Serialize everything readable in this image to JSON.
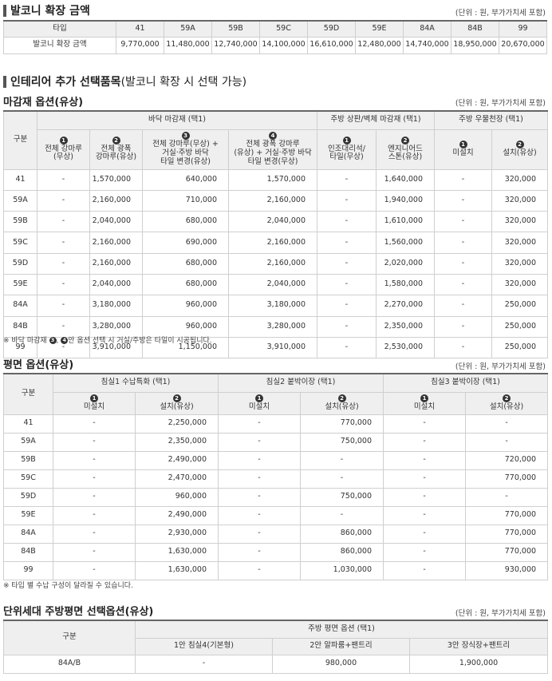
{
  "balcony": {
    "title": "발코니 확장 금액",
    "unit": "(단위 : 원, 부가가치세 포함)",
    "header_label": "타입",
    "types": [
      "41",
      "59A",
      "59B",
      "59C",
      "59D",
      "59E",
      "84A",
      "84B",
      "99"
    ],
    "row_label": "발코니 확장 금액",
    "values": [
      "9,770,000",
      "11,480,000",
      "12,740,000",
      "14,100,000",
      "16,610,000",
      "12,480,000",
      "14,740,000",
      "18,950,000",
      "20,670,000"
    ]
  },
  "interior": {
    "title": "인테리어 추가 선택품목",
    "title_suffix": "(발코니 확장 시 선택 가능)"
  },
  "finish": {
    "title": "마감재 옵션(유상)",
    "unit": "(단위 : 원, 부가가치세 포함)",
    "gubun": "구분",
    "groups": [
      "바닥 마감재 (택1)",
      "주방 상판/벽체 마감재 (택1)",
      "주방 우물천장 (택1)"
    ],
    "cols": [
      {
        "n": "1",
        "lines": [
          "전체 강마루",
          "(무상)"
        ]
      },
      {
        "n": "2",
        "lines": [
          "전체 광폭",
          "강마루(유상)"
        ]
      },
      {
        "n": "3",
        "lines": [
          "전체 강마루(무상) +",
          "거실·주방 바닥",
          "타일 변경(유상)"
        ]
      },
      {
        "n": "4",
        "lines": [
          "전체 광폭 강마루",
          "(유상) + 거실·주방 바닥",
          "타일 변경(무상)"
        ]
      },
      {
        "n": "1",
        "lines": [
          "인조대리석/",
          "타일(무상)"
        ]
      },
      {
        "n": "2",
        "lines": [
          "엔지니어드",
          "스톤(유상)"
        ]
      },
      {
        "n": "1",
        "lines": [
          "미설치"
        ]
      },
      {
        "n": "2",
        "lines": [
          "설치(유상)"
        ]
      }
    ],
    "rows": [
      {
        "type": "41",
        "v": [
          "-",
          "1,570,000",
          "640,000",
          "1,570,000",
          "-",
          "1,640,000",
          "-",
          "320,000"
        ]
      },
      {
        "type": "59A",
        "v": [
          "-",
          "2,160,000",
          "710,000",
          "2,160,000",
          "-",
          "1,940,000",
          "-",
          "320,000"
        ]
      },
      {
        "type": "59B",
        "v": [
          "-",
          "2,040,000",
          "680,000",
          "2,040,000",
          "-",
          "1,610,000",
          "-",
          "320,000"
        ]
      },
      {
        "type": "59C",
        "v": [
          "-",
          "2,160,000",
          "690,000",
          "2,160,000",
          "-",
          "1,560,000",
          "-",
          "320,000"
        ]
      },
      {
        "type": "59D",
        "v": [
          "-",
          "2,160,000",
          "680,000",
          "2,160,000",
          "-",
          "2,020,000",
          "-",
          "320,000"
        ]
      },
      {
        "type": "59E",
        "v": [
          "-",
          "2,040,000",
          "680,000",
          "2,040,000",
          "-",
          "1,580,000",
          "-",
          "320,000"
        ]
      },
      {
        "type": "84A",
        "v": [
          "-",
          "3,180,000",
          "960,000",
          "3,180,000",
          "-",
          "2,270,000",
          "-",
          "250,000"
        ]
      },
      {
        "type": "84B",
        "v": [
          "-",
          "3,280,000",
          "960,000",
          "3,280,000",
          "-",
          "2,350,000",
          "-",
          "250,000"
        ]
      },
      {
        "type": "99",
        "v": [
          "-",
          "3,910,000",
          "1,150,000",
          "3,910,000",
          "-",
          "2,530,000",
          "-",
          "250,000"
        ]
      }
    ],
    "note_prefix": "※ 바닥 마감재 ",
    "note_b1": "3",
    "note_mid": ", ",
    "note_b2": "4",
    "note_suffix": "안 옵션 선택 시 거실/주방은 타일이 시공됩니다."
  },
  "plan": {
    "title": "평면 옵션(유상)",
    "unit": "(단위 : 원, 부가가치세 포함)",
    "gubun": "구분",
    "groups": [
      "침실1 수납특화 (택1)",
      "침실2 붙박이장 (택1)",
      "침실3 붙박이장 (택1)"
    ],
    "cols": [
      {
        "n": "1",
        "label": "미설치"
      },
      {
        "n": "2",
        "label": "설치(유상)"
      },
      {
        "n": "1",
        "label": "미설치"
      },
      {
        "n": "2",
        "label": "설치(유상)"
      },
      {
        "n": "1",
        "label": "미설치"
      },
      {
        "n": "2",
        "label": "설치(유상)"
      }
    ],
    "rows": [
      {
        "type": "41",
        "v": [
          "-",
          "2,250,000",
          "-",
          "770,000",
          "-",
          "-"
        ]
      },
      {
        "type": "59A",
        "v": [
          "-",
          "2,350,000",
          "-",
          "750,000",
          "-",
          "-"
        ]
      },
      {
        "type": "59B",
        "v": [
          "-",
          "2,490,000",
          "-",
          "-",
          "-",
          "720,000"
        ]
      },
      {
        "type": "59C",
        "v": [
          "-",
          "2,470,000",
          "-",
          "-",
          "-",
          "770,000"
        ]
      },
      {
        "type": "59D",
        "v": [
          "-",
          "960,000",
          "-",
          "750,000",
          "-",
          "-"
        ]
      },
      {
        "type": "59E",
        "v": [
          "-",
          "2,490,000",
          "-",
          "-",
          "-",
          "770,000"
        ]
      },
      {
        "type": "84A",
        "v": [
          "-",
          "2,930,000",
          "-",
          "860,000",
          "-",
          "770,000"
        ]
      },
      {
        "type": "84B",
        "v": [
          "-",
          "1,630,000",
          "-",
          "860,000",
          "-",
          "770,000"
        ]
      },
      {
        "type": "99",
        "v": [
          "-",
          "1,630,000",
          "-",
          "1,030,000",
          "-",
          "930,000"
        ]
      }
    ],
    "note": "※ 타입 별 수납 구성이 달라질 수 있습니다."
  },
  "kitchen": {
    "title": "단위세대 주방평면 선택옵션(유상)",
    "unit": "(단위 : 원, 부가가치세 포함)",
    "gubun": "구분",
    "group": "주방 평면 옵션 (택1)",
    "cols": [
      "1안 침실4(기본형)",
      "2안 알파룸+팬트리",
      "3안 장식장+팬트리"
    ],
    "row": {
      "type": "84A/B",
      "v": [
        "-",
        "980,000",
        "1,900,000"
      ]
    }
  }
}
